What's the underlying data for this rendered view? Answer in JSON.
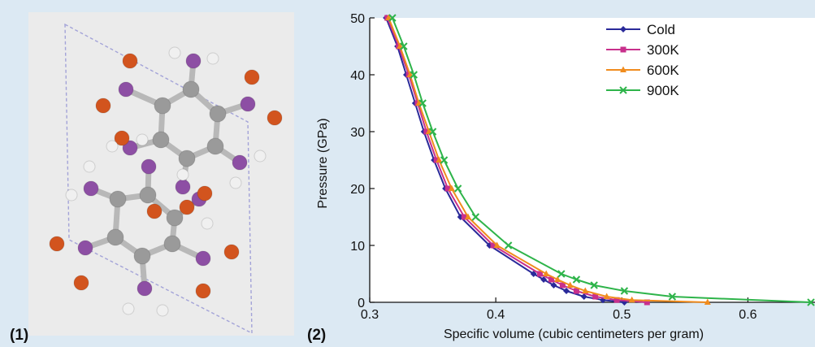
{
  "panels": {
    "left_label": "(1)",
    "right_label": "(2)"
  },
  "molecule": {
    "icon": "molecule-crystal-structure-icon",
    "colors": {
      "carbon": "#9a9a9a",
      "nitrogen": "#8d4fa4",
      "oxygen": "#d2541e",
      "hydrogen": "#f0f0f0",
      "cell": "#a3a3d8"
    }
  },
  "chart_data": {
    "type": "line",
    "title": "",
    "xlabel": "Specific volume (cubic centimeters per gram)",
    "ylabel": "Pressure (GPa)",
    "xlim": [
      0.3,
      0.65
    ],
    "ylim": [
      0,
      50
    ],
    "xticks": [
      0.3,
      0.4,
      0.5,
      0.6
    ],
    "xtick_labels": [
      "0.3",
      "0.4",
      "0.5",
      "0.6"
    ],
    "yticks": [
      0,
      10,
      20,
      30,
      40,
      50
    ],
    "ytick_labels": [
      "0",
      "10",
      "20",
      "30",
      "40",
      "50"
    ],
    "grid": false,
    "legend": "top-right",
    "series": [
      {
        "name": "Cold",
        "color": "#2a2a9a",
        "marker": "diamond",
        "x": [
          0.313,
          0.322,
          0.329,
          0.336,
          0.343,
          0.351,
          0.36,
          0.372,
          0.395,
          0.43,
          0.438,
          0.446,
          0.456,
          0.47,
          0.485,
          0.502
        ],
        "y": [
          50,
          45,
          40,
          35,
          30,
          25,
          20,
          15,
          10,
          5,
          4,
          3,
          2,
          1,
          0.4,
          0
        ]
      },
      {
        "name": "300K",
        "color": "#c8308c",
        "marker": "square",
        "x": [
          0.314,
          0.323,
          0.331,
          0.338,
          0.345,
          0.353,
          0.362,
          0.375,
          0.398,
          0.435,
          0.444,
          0.453,
          0.464,
          0.479,
          0.496,
          0.52
        ],
        "y": [
          50,
          45,
          40,
          35,
          30,
          25,
          20,
          15,
          10,
          5,
          4,
          3,
          2,
          1,
          0.4,
          0
        ]
      },
      {
        "name": "600K",
        "color": "#f08c1e",
        "marker": "triangle",
        "x": [
          0.315,
          0.324,
          0.332,
          0.339,
          0.347,
          0.355,
          0.365,
          0.378,
          0.401,
          0.44,
          0.449,
          0.459,
          0.471,
          0.488,
          0.508,
          0.568
        ],
        "y": [
          50,
          45,
          40,
          35,
          30,
          25,
          20,
          15,
          10,
          5,
          4,
          3,
          2,
          1,
          0.4,
          0
        ]
      },
      {
        "name": "900K",
        "color": "#2eb44a",
        "marker": "x",
        "x": [
          0.318,
          0.327,
          0.335,
          0.342,
          0.35,
          0.359,
          0.37,
          0.384,
          0.41,
          0.452,
          0.464,
          0.478,
          0.502,
          0.54,
          0.65
        ],
        "y": [
          50,
          45,
          40,
          35,
          30,
          25,
          20,
          15,
          10,
          5,
          4,
          3,
          2,
          1,
          0
        ]
      }
    ]
  }
}
